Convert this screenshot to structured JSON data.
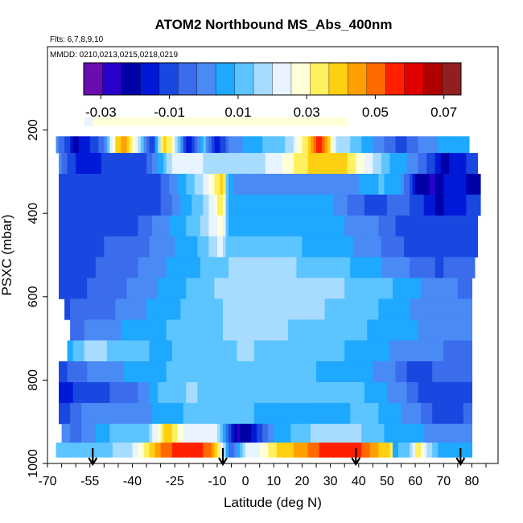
{
  "chart_data": {
    "type": "heatmap",
    "title": "ATOM2 Northbound MS_Abs_400nm",
    "flights_label": "Flts: 6,7,8,9,10",
    "dates_label": "MMDD: 0210,0213,0215,0218,0219",
    "xlabel": "Latitude (deg N)",
    "ylabel": "PSXC (mbar)",
    "xlim": [
      -70,
      85
    ],
    "ylim": [
      1000,
      0
    ],
    "x_ticks": [
      -70,
      -55,
      -40,
      -25,
      -10,
      0,
      10,
      20,
      30,
      40,
      50,
      60,
      70,
      80
    ],
    "x_tick_labels": [
      "-70",
      "-55",
      "-40",
      "-25",
      "-10",
      "0",
      "10",
      "20",
      "30",
      "40",
      "50",
      "60",
      "70",
      "80"
    ],
    "y_ticks": [
      200,
      400,
      600,
      800,
      1000
    ],
    "y_tick_labels": [
      "200",
      "400",
      "600",
      "800",
      "1000"
    ],
    "colorbar": {
      "range": [
        -0.035,
        0.075
      ],
      "ticks": [
        -0.03,
        -0.01,
        0.01,
        0.03,
        0.05,
        0.07
      ],
      "tick_labels": [
        "-0.03",
        "-0.01",
        "0.01",
        "0.03",
        "0.05",
        "0.07"
      ],
      "colors": [
        "#6a0dad",
        "#2a00cc",
        "#0000a8",
        "#0018d8",
        "#1848e0",
        "#3a6cec",
        "#4a8af4",
        "#1ea8ff",
        "#5cc4ff",
        "#a8dcff",
        "#e8f4ff",
        "#ffffd8",
        "#fff060",
        "#ffd010",
        "#ffa000",
        "#ff6a00",
        "#ff2000",
        "#e00000",
        "#b00000",
        "#902020"
      ]
    },
    "profile_arrows_lat": [
      -54,
      -8,
      39,
      76
    ],
    "pressure_bins": [
      180,
      230,
      280,
      330,
      380,
      430,
      480,
      530,
      580,
      630,
      680,
      730,
      780,
      830,
      880,
      930,
      970
    ],
    "series": [
      {
        "pressure": 180,
        "lat_start": -57,
        "lat_end": 36,
        "knots_lat": [
          -57,
          -53,
          36
        ],
        "knots_val": [
          0.02,
          0.028,
          0.028
        ]
      },
      {
        "pressure": 230,
        "lat_start": -67,
        "lat_end": 79,
        "knots_lat": [
          -67,
          -60,
          -50,
          -46,
          -43,
          -38,
          -33,
          -29,
          -26,
          -20,
          -15,
          -10,
          -5,
          5,
          15,
          23,
          26,
          29,
          33,
          37,
          48,
          55,
          62,
          70,
          79
        ],
        "knots_val": [
          0.0,
          -0.02,
          -0.005,
          0.035,
          0.045,
          0.02,
          -0.015,
          0.04,
          0.03,
          -0.02,
          0.012,
          -0.018,
          0.0,
          0.008,
          0.015,
          0.04,
          0.06,
          0.04,
          0.015,
          0.015,
          0.0,
          -0.01,
          0.0,
          0.005,
          0.005
        ]
      },
      {
        "pressure": 280,
        "lat_start": -66,
        "lat_end": 82,
        "knots_lat": [
          -66,
          -58,
          -50,
          -42,
          -35,
          -30,
          -26,
          -15,
          0,
          10,
          20,
          28,
          35,
          40,
          45,
          50,
          60,
          70,
          82
        ],
        "knots_val": [
          0.0,
          -0.018,
          -0.012,
          -0.01,
          -0.008,
          0.005,
          0.022,
          0.02,
          0.015,
          0.022,
          0.035,
          0.04,
          0.038,
          0.03,
          0.02,
          0.01,
          0.0,
          -0.02,
          -0.01
        ]
      },
      {
        "pressure": 330,
        "lat_start": -66,
        "lat_end": 83,
        "knots_lat": [
          -66,
          -50,
          -30,
          -15,
          -10,
          -8,
          -6,
          0,
          20,
          35,
          48,
          55,
          60,
          66,
          72,
          83
        ],
        "knots_val": [
          -0.012,
          -0.01,
          -0.008,
          0.02,
          0.035,
          0.04,
          0.005,
          0.0,
          -0.002,
          0.0,
          0.01,
          0.005,
          -0.02,
          -0.025,
          -0.015,
          -0.022
        ]
      },
      {
        "pressure": 380,
        "lat_start": -66,
        "lat_end": 83,
        "knots_lat": [
          -66,
          -50,
          -30,
          -15,
          -10,
          -8,
          -6,
          10,
          30,
          45,
          55,
          62,
          68,
          75,
          83
        ],
        "knots_val": [
          -0.012,
          -0.01,
          -0.008,
          0.015,
          0.03,
          0.035,
          0.005,
          0.006,
          0.004,
          -0.01,
          -0.005,
          -0.012,
          -0.02,
          -0.015,
          -0.01
        ]
      },
      {
        "pressure": 430,
        "lat_start": -66,
        "lat_end": 82,
        "knots_lat": [
          -66,
          -40,
          -15,
          -10,
          -8,
          -6,
          10,
          30,
          45,
          55,
          65,
          75,
          82
        ],
        "knots_val": [
          -0.011,
          -0.009,
          0.015,
          0.025,
          0.028,
          0.005,
          0.006,
          0.005,
          0.0,
          -0.01,
          -0.008,
          -0.012,
          -0.01
        ]
      },
      {
        "pressure": 480,
        "lat_start": -66,
        "lat_end": 82,
        "knots_lat": [
          -66,
          -40,
          -15,
          -10,
          -8,
          -6,
          10,
          30,
          45,
          60,
          70,
          82
        ],
        "knots_val": [
          -0.01,
          -0.006,
          0.01,
          0.02,
          0.02,
          0.012,
          0.01,
          0.008,
          0.0,
          -0.01,
          -0.012,
          -0.008
        ]
      },
      {
        "pressure": 530,
        "lat_start": -66,
        "lat_end": 81,
        "knots_lat": [
          -66,
          -45,
          -25,
          -10,
          0,
          20,
          40,
          55,
          68,
          81
        ],
        "knots_val": [
          -0.01,
          -0.006,
          0.005,
          0.012,
          0.018,
          0.014,
          0.008,
          0.0,
          -0.008,
          -0.005
        ]
      },
      {
        "pressure": 580,
        "lat_start": -66,
        "lat_end": 80,
        "knots_lat": [
          -66,
          -50,
          -30,
          -10,
          10,
          30,
          50,
          65,
          80
        ],
        "knots_val": [
          -0.01,
          -0.006,
          0.004,
          0.015,
          0.018,
          0.016,
          0.01,
          0.002,
          -0.004
        ]
      },
      {
        "pressure": 630,
        "lat_start": -64,
        "lat_end": 80,
        "knots_lat": [
          -64,
          -50,
          -30,
          -10,
          10,
          30,
          50,
          65,
          80
        ],
        "knots_val": [
          -0.008,
          -0.004,
          0.006,
          0.014,
          0.018,
          0.014,
          0.008,
          0.0,
          -0.002
        ]
      },
      {
        "pressure": 680,
        "lat_start": -62,
        "lat_end": 80,
        "knots_lat": [
          -62,
          -50,
          -35,
          -20,
          0,
          20,
          40,
          60,
          70,
          80
        ],
        "knots_val": [
          -0.005,
          0.002,
          0.006,
          0.012,
          0.016,
          0.014,
          0.01,
          0.004,
          0.0,
          -0.002
        ]
      },
      {
        "pressure": 730,
        "lat_start": -63,
        "lat_end": 80,
        "knots_lat": [
          -63,
          -55,
          -45,
          -30,
          -15,
          0,
          20,
          40,
          60,
          80
        ],
        "knots_val": [
          0.005,
          0.018,
          0.012,
          0.008,
          0.012,
          0.015,
          0.012,
          0.008,
          0.0,
          -0.004
        ]
      },
      {
        "pressure": 780,
        "lat_start": -66,
        "lat_end": 80,
        "knots_lat": [
          -66,
          -60,
          -50,
          -40,
          -25,
          -10,
          10,
          30,
          50,
          60,
          70,
          80
        ],
        "knots_val": [
          -0.01,
          -0.005,
          0.002,
          0.004,
          0.01,
          0.01,
          0.012,
          0.008,
          0.002,
          -0.012,
          -0.005,
          -0.004
        ]
      },
      {
        "pressure": 830,
        "lat_start": -66,
        "lat_end": 80,
        "knots_lat": [
          -66,
          -60,
          -50,
          -40,
          -30,
          -20,
          0,
          20,
          40,
          55,
          65,
          80
        ],
        "knots_val": [
          -0.018,
          -0.012,
          -0.008,
          -0.005,
          0.01,
          0.015,
          0.012,
          0.01,
          0.01,
          0.0,
          -0.012,
          -0.008
        ]
      },
      {
        "pressure": 880,
        "lat_start": -66,
        "lat_end": 80,
        "knots_lat": [
          -66,
          -55,
          -40,
          -30,
          -20,
          0,
          10,
          30,
          45,
          60,
          70,
          80
        ],
        "knots_val": [
          -0.012,
          0.002,
          0.0,
          0.005,
          0.01,
          0.01,
          0.006,
          0.008,
          0.01,
          0.0,
          -0.012,
          -0.006
        ]
      },
      {
        "pressure": 930,
        "lat_start": -65,
        "lat_end": 80,
        "knots_lat": [
          -65,
          -60,
          -45,
          -35,
          -28,
          -25,
          -20,
          -10,
          -3,
          2,
          10,
          20,
          30,
          40,
          55,
          70,
          80
        ],
        "knots_val": [
          0.0,
          -0.004,
          0.012,
          0.01,
          0.04,
          0.035,
          0.02,
          0.02,
          -0.025,
          -0.02,
          0.005,
          0.012,
          0.02,
          0.015,
          0.005,
          0.002,
          0.0
        ]
      },
      {
        "pressure": 970,
        "lat_start": -67,
        "lat_end": 52,
        "knots_lat": [
          -67,
          -55,
          -45,
          -40,
          -35,
          -30,
          -25,
          -20,
          -12,
          -8,
          -5,
          0,
          5,
          10,
          20,
          30,
          40,
          45,
          52
        ],
        "knots_val": [
          0.01,
          0.012,
          0.015,
          0.02,
          0.035,
          0.048,
          0.055,
          0.058,
          0.05,
          0.02,
          -0.01,
          0.02,
          0.025,
          0.035,
          0.045,
          0.058,
          0.055,
          0.045,
          0.035
        ]
      },
      {
        "pressure": 970,
        "lat_start": 52,
        "lat_end": 80,
        "knots_lat": [
          52,
          58,
          61,
          64,
          70,
          80
        ],
        "knots_val": [
          0.005,
          0.015,
          0.035,
          0.02,
          0.005,
          0.008
        ]
      }
    ]
  }
}
